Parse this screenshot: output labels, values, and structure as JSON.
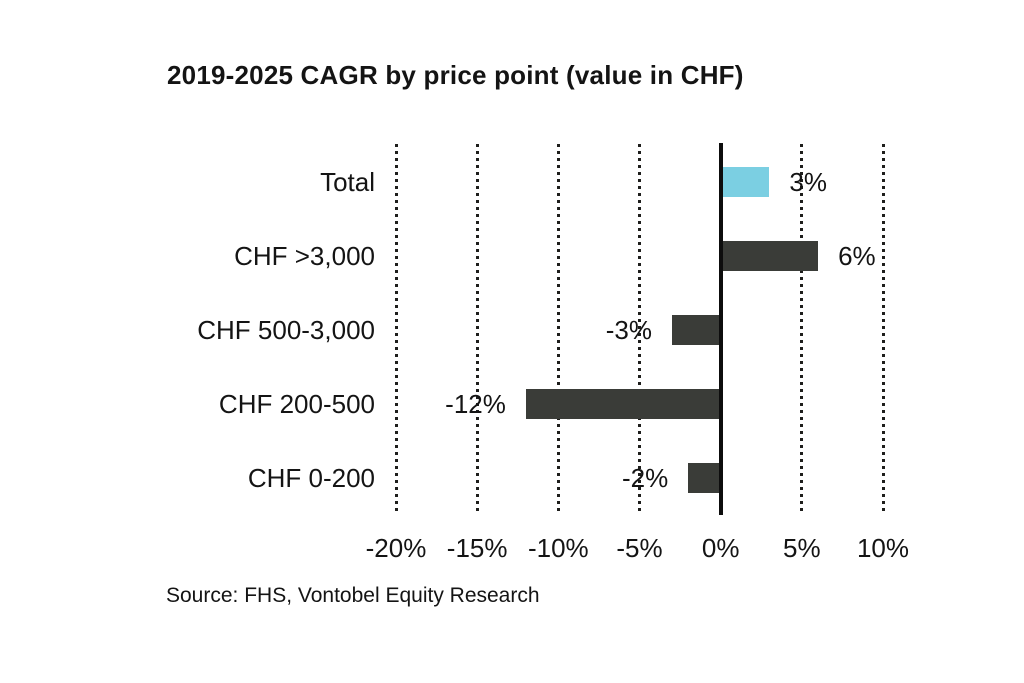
{
  "title": "2019-2025 CAGR by price point (value in CHF)",
  "source": "Source: FHS, Vontobel Equity Research",
  "colors": {
    "highlight_bar": "#7BCFE2",
    "default_bar": "#3A3C38",
    "zero_axis": "#0D0D0D",
    "gridline": "#1E1E1C",
    "text": "#141414",
    "background": "#FFFFFF"
  },
  "chart_data": {
    "type": "bar",
    "orientation": "horizontal",
    "title": "2019-2025 CAGR by price point (value in CHF)",
    "categories": [
      "Total",
      "CHF >3,000",
      "CHF 500-3,000",
      "CHF 200-500",
      "CHF 0-200"
    ],
    "values": [
      3,
      6,
      -3,
      -12,
      -2
    ],
    "value_labels": [
      "3%",
      "6%",
      "-3%",
      "-12%",
      "-2%"
    ],
    "bar_colors": [
      "#7BCFE2",
      "#3A3C38",
      "#3A3C38",
      "#3A3C38",
      "#3A3C38"
    ],
    "xlabel": "",
    "ylabel": "",
    "xlim": [
      -20,
      10
    ],
    "xticks": [
      -20,
      -15,
      -10,
      -5,
      0,
      5,
      10
    ],
    "xtick_labels": [
      "-20%",
      "-15%",
      "-10%",
      "-5%",
      "0%",
      "5%",
      "10%"
    ],
    "grid": "vertical-dotted",
    "zero_axis": "solid",
    "legend": false
  }
}
